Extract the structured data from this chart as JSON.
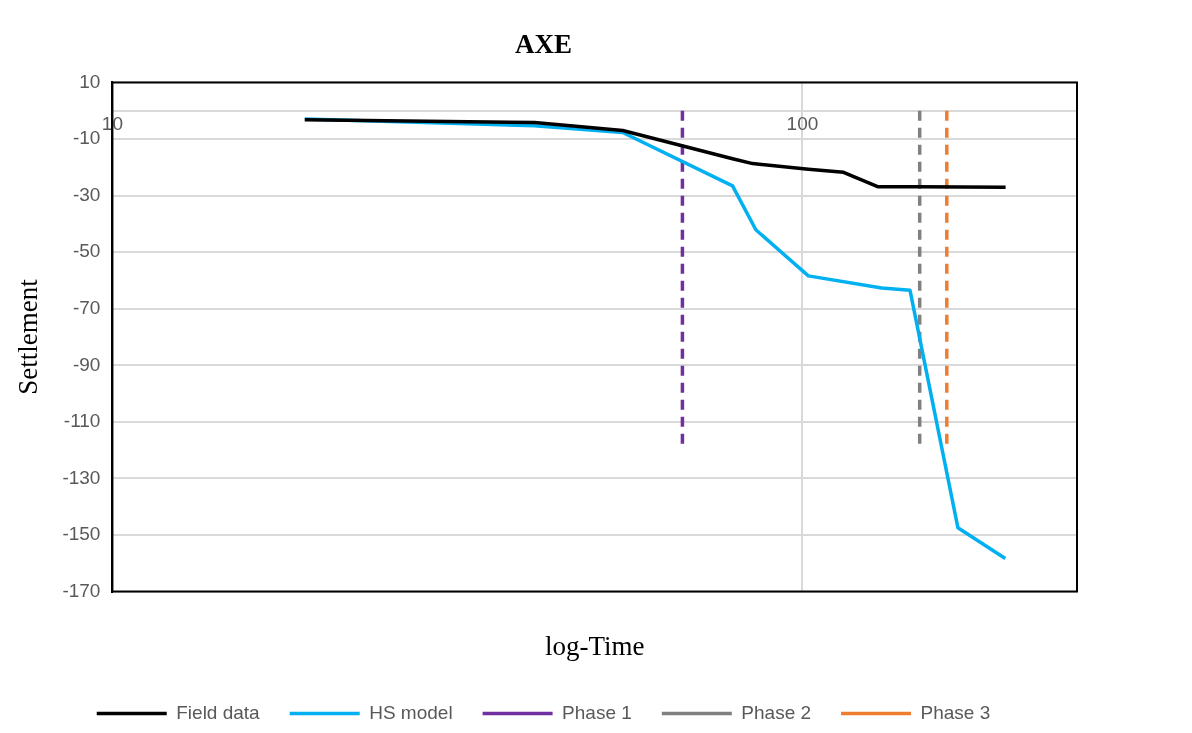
{
  "chart_data": {
    "type": "line",
    "title": "AXE",
    "xlabel": "log-Time",
    "ylabel": "Settlement",
    "log": "x",
    "grid": true,
    "legend": "bottom",
    "marker": "none",
    "xlim": [
      10,
      250
    ],
    "xticks": [
      10,
      100
    ],
    "ylim": [
      -170,
      10
    ],
    "yticks": [
      10,
      -10,
      -30,
      -50,
      -70,
      -90,
      -110,
      -130,
      -150,
      -170
    ],
    "series": [
      {
        "name": "Field data",
        "color": "#000000",
        "line_style": "solid",
        "x": [
          19,
          40.9,
          54.9,
          79.2,
          84.7,
          102,
          114.7,
          128.8,
          147,
          197
        ],
        "values": [
          -3.2,
          -4.2,
          -7,
          -17,
          -18.7,
          -20.7,
          -21.8,
          -26.9,
          -26.9,
          -27.1
        ]
      },
      {
        "name": "HS model",
        "color": "#00b0f0",
        "line_style": "solid",
        "x": [
          19,
          40.9,
          54.9,
          79.2,
          85.6,
          102,
          130.3,
          143.2,
          168,
          196.8
        ],
        "values": [
          -2.9,
          -5.3,
          -7.7,
          -26.6,
          -42.1,
          -58.4,
          -62.7,
          -63.5,
          -147.4,
          -158.3
        ]
      },
      {
        "name": "Phase 1",
        "color": "#7030a0",
        "line_style": "dashed",
        "x": [
          67,
          67
        ],
        "values": [
          0,
          -118
        ]
      },
      {
        "name": "Phase 2",
        "color": "#808080",
        "line_style": "dashed",
        "x": [
          147.9,
          147.9
        ],
        "values": [
          0,
          -118
        ]
      },
      {
        "name": "Phase 3",
        "color": "#ed7d31",
        "line_style": "dashed",
        "x": [
          161.9,
          161.9
        ],
        "values": [
          0,
          -118
        ]
      }
    ]
  }
}
